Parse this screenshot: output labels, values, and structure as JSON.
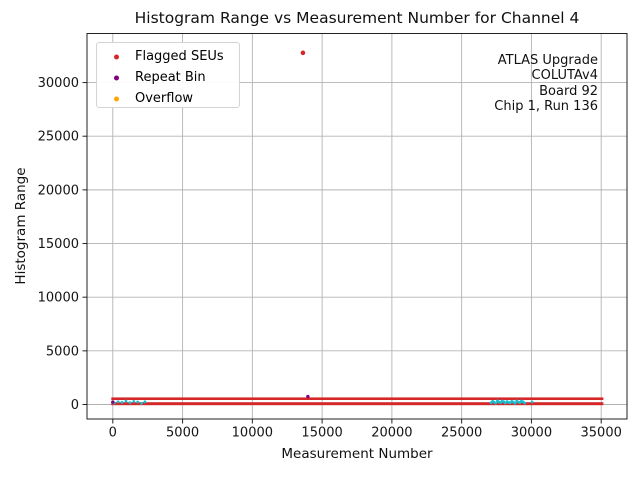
{
  "chart_data": {
    "type": "scatter",
    "title": "Histogram Range vs Measurement Number for Channel 4",
    "xlabel": "Measurement Number",
    "ylabel": "Histogram Range",
    "x_ticks": [
      0,
      5000,
      10000,
      15000,
      20000,
      25000,
      30000,
      35000
    ],
    "y_ticks": [
      0,
      5000,
      10000,
      15000,
      20000,
      25000,
      30000
    ],
    "xlim": [
      -1850,
      36850
    ],
    "ylim": [
      -1350,
      34570
    ],
    "grid": true,
    "grid_color": "#b3b3b3",
    "spine_color": "#222222",
    "legend": {
      "position": "upper-left",
      "entries": [
        {
          "label": "Flagged SEUs",
          "color": "#d62728"
        },
        {
          "label": "Repeat Bin",
          "color": "#800080"
        },
        {
          "label": "Overflow",
          "color": "#ffa500"
        }
      ]
    },
    "annotation": {
      "align": "right",
      "lines": [
        "ATLAS Upgrade",
        "COLUTAv4",
        "Board 92",
        "Chip 1, Run 136"
      ]
    },
    "series": [
      {
        "name": "flagged-seu-band",
        "color": "#d62728",
        "render": "band",
        "x_start": 0,
        "x_end": 35050,
        "rows": [
          {
            "y": 540,
            "thickness_px": 2.6
          },
          {
            "y": 75,
            "thickness_px": 3.0
          }
        ]
      },
      {
        "name": "unflagged-measurements",
        "color": "#17becf",
        "render": "points",
        "marker_px": 1.4,
        "points": [
          [
            100,
            140
          ],
          [
            380,
            260
          ],
          [
            660,
            200
          ],
          [
            940,
            320
          ],
          [
            1220,
            170
          ],
          [
            1500,
            290
          ],
          [
            1780,
            230
          ],
          [
            2060,
            110
          ],
          [
            2300,
            250
          ],
          [
            27100,
            160
          ],
          [
            27215,
            300
          ],
          [
            27330,
            220
          ],
          [
            27445,
            120
          ],
          [
            27560,
            340
          ],
          [
            27675,
            240
          ],
          [
            27790,
            180
          ],
          [
            27905,
            320
          ],
          [
            28020,
            260
          ],
          [
            28135,
            140
          ],
          [
            28250,
            280
          ],
          [
            28365,
            200
          ],
          [
            28480,
            160
          ],
          [
            28595,
            300
          ],
          [
            28710,
            220
          ],
          [
            28825,
            120
          ],
          [
            28940,
            340
          ],
          [
            29055,
            240
          ],
          [
            29170,
            180
          ],
          [
            29285,
            320
          ],
          [
            29400,
            260
          ],
          [
            29515,
            140
          ],
          [
            30050,
            230
          ]
        ]
      },
      {
        "name": "repeat-bin",
        "color": "#800080",
        "render": "points",
        "marker_px": 1.7,
        "points": [
          [
            0,
            230
          ],
          [
            13980,
            745
          ]
        ]
      },
      {
        "name": "flagged-seu-outlier",
        "color": "#d62728",
        "render": "points",
        "marker_px": 2.3,
        "points": [
          [
            13625,
            32767
          ]
        ]
      }
    ]
  }
}
